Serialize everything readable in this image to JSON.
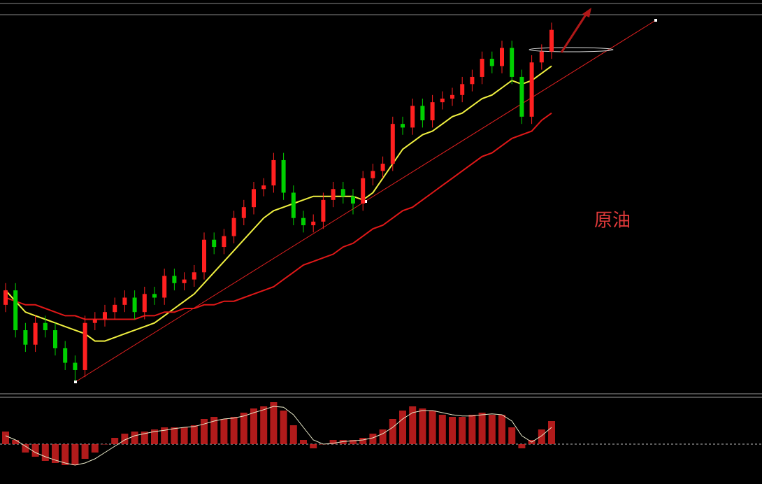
{
  "chart_data": {
    "type": "candlestick",
    "annotation": "原油",
    "up_color": "#ff2020",
    "down_color": "#00d000",
    "open": [
      24,
      28,
      17,
      13,
      19,
      17,
      12,
      8,
      6,
      19,
      20,
      22,
      24,
      26,
      22,
      27,
      26,
      32,
      30,
      31,
      33,
      42,
      40,
      43,
      48,
      51,
      56,
      57,
      64,
      55,
      48,
      46,
      47,
      53,
      56,
      54,
      52,
      59,
      61,
      63,
      74,
      73,
      79,
      75,
      80,
      81,
      82,
      85,
      87,
      92,
      90,
      95,
      87,
      76,
      91,
      94
    ],
    "high": [
      30,
      30,
      19,
      21,
      21,
      19,
      14,
      10,
      21,
      22,
      24,
      26,
      28,
      28,
      29,
      29,
      34,
      34,
      33,
      35,
      44,
      44,
      45,
      50,
      53,
      58,
      59,
      66,
      66,
      57,
      50,
      49,
      55,
      58,
      58,
      56,
      61,
      63,
      65,
      76,
      76,
      81,
      81,
      82,
      83,
      84,
      87,
      89,
      94,
      94,
      97,
      97,
      89,
      93,
      96,
      102
    ],
    "low": [
      22,
      15,
      11,
      11,
      15,
      10,
      6,
      3,
      4,
      17,
      18,
      20,
      22,
      20,
      20,
      24,
      24,
      28,
      28,
      29,
      31,
      38,
      38,
      41,
      46,
      49,
      54,
      55,
      53,
      46,
      44,
      44,
      45,
      51,
      52,
      49,
      50,
      57,
      59,
      61,
      71,
      71,
      73,
      73,
      78,
      79,
      80,
      83,
      85,
      88,
      88,
      85,
      74,
      74,
      89,
      92
    ],
    "close": [
      28,
      17,
      13,
      19,
      17,
      12,
      8,
      6,
      19,
      20,
      22,
      24,
      26,
      22,
      27,
      26,
      32,
      30,
      31,
      33,
      42,
      40,
      43,
      48,
      51,
      56,
      57,
      64,
      55,
      48,
      46,
      47,
      53,
      56,
      54,
      52,
      59,
      61,
      63,
      74,
      73,
      79,
      75,
      80,
      81,
      82,
      85,
      87,
      92,
      90,
      95,
      87,
      76,
      91,
      94,
      100
    ],
    "ylim": [
      0,
      104
    ],
    "ma": [
      {
        "color": "#f0f040",
        "values": [
          28,
          25,
          22,
          21,
          20,
          19,
          18,
          17,
          16,
          14,
          14,
          15,
          16,
          17,
          18,
          19,
          21,
          23,
          25,
          27,
          30,
          33,
          36,
          39,
          42,
          45,
          48,
          50,
          51,
          52,
          53,
          54,
          54,
          54,
          54,
          54,
          53,
          55,
          59,
          63,
          67,
          69,
          71,
          72,
          74,
          76,
          77,
          79,
          81,
          82,
          84,
          86,
          85,
          86,
          88,
          90
        ]
      },
      {
        "color": "#e01818",
        "values": [
          26,
          25,
          24,
          24,
          23,
          22,
          21,
          21,
          20,
          20,
          20,
          20,
          20,
          20,
          21,
          21,
          22,
          22,
          23,
          23,
          24,
          24,
          25,
          25,
          26,
          27,
          28,
          29,
          31,
          33,
          35,
          36,
          37,
          38,
          40,
          41,
          43,
          45,
          46,
          48,
          50,
          51,
          53,
          55,
          57,
          59,
          61,
          63,
          65,
          66,
          68,
          70,
          71,
          72,
          75,
          77
        ]
      }
    ],
    "indicator": {
      "type": "bar",
      "ylim": [
        -1,
        1
      ],
      "color": "#d02020",
      "signal_color": "#e8e8c8",
      "values": [
        0.3,
        0.1,
        -0.2,
        -0.3,
        -0.4,
        -0.45,
        -0.5,
        -0.5,
        -0.35,
        -0.2,
        0,
        0.15,
        0.25,
        0.3,
        0.3,
        0.35,
        0.4,
        0.4,
        0.4,
        0.45,
        0.6,
        0.65,
        0.6,
        0.65,
        0.75,
        0.85,
        0.9,
        1.0,
        0.8,
        0.45,
        0.1,
        -0.1,
        0.0,
        0.1,
        0.1,
        0.1,
        0.15,
        0.25,
        0.35,
        0.6,
        0.8,
        0.9,
        0.85,
        0.8,
        0.7,
        0.65,
        0.65,
        0.7,
        0.75,
        0.7,
        0.7,
        0.4,
        -0.1,
        0.1,
        0.35,
        0.55
      ],
      "signal": [
        0.2,
        0.1,
        -0.05,
        -0.2,
        -0.3,
        -0.38,
        -0.45,
        -0.5,
        -0.45,
        -0.35,
        -0.2,
        -0.05,
        0.1,
        0.2,
        0.25,
        0.3,
        0.33,
        0.37,
        0.4,
        0.42,
        0.48,
        0.55,
        0.6,
        0.62,
        0.67,
        0.75,
        0.82,
        0.9,
        0.88,
        0.7,
        0.4,
        0.1,
        0.0,
        0.02,
        0.06,
        0.08,
        0.1,
        0.15,
        0.25,
        0.4,
        0.6,
        0.75,
        0.8,
        0.8,
        0.75,
        0.7,
        0.67,
        0.67,
        0.7,
        0.72,
        0.7,
        0.55,
        0.2,
        0.05,
        0.2,
        0.4
      ]
    }
  }
}
